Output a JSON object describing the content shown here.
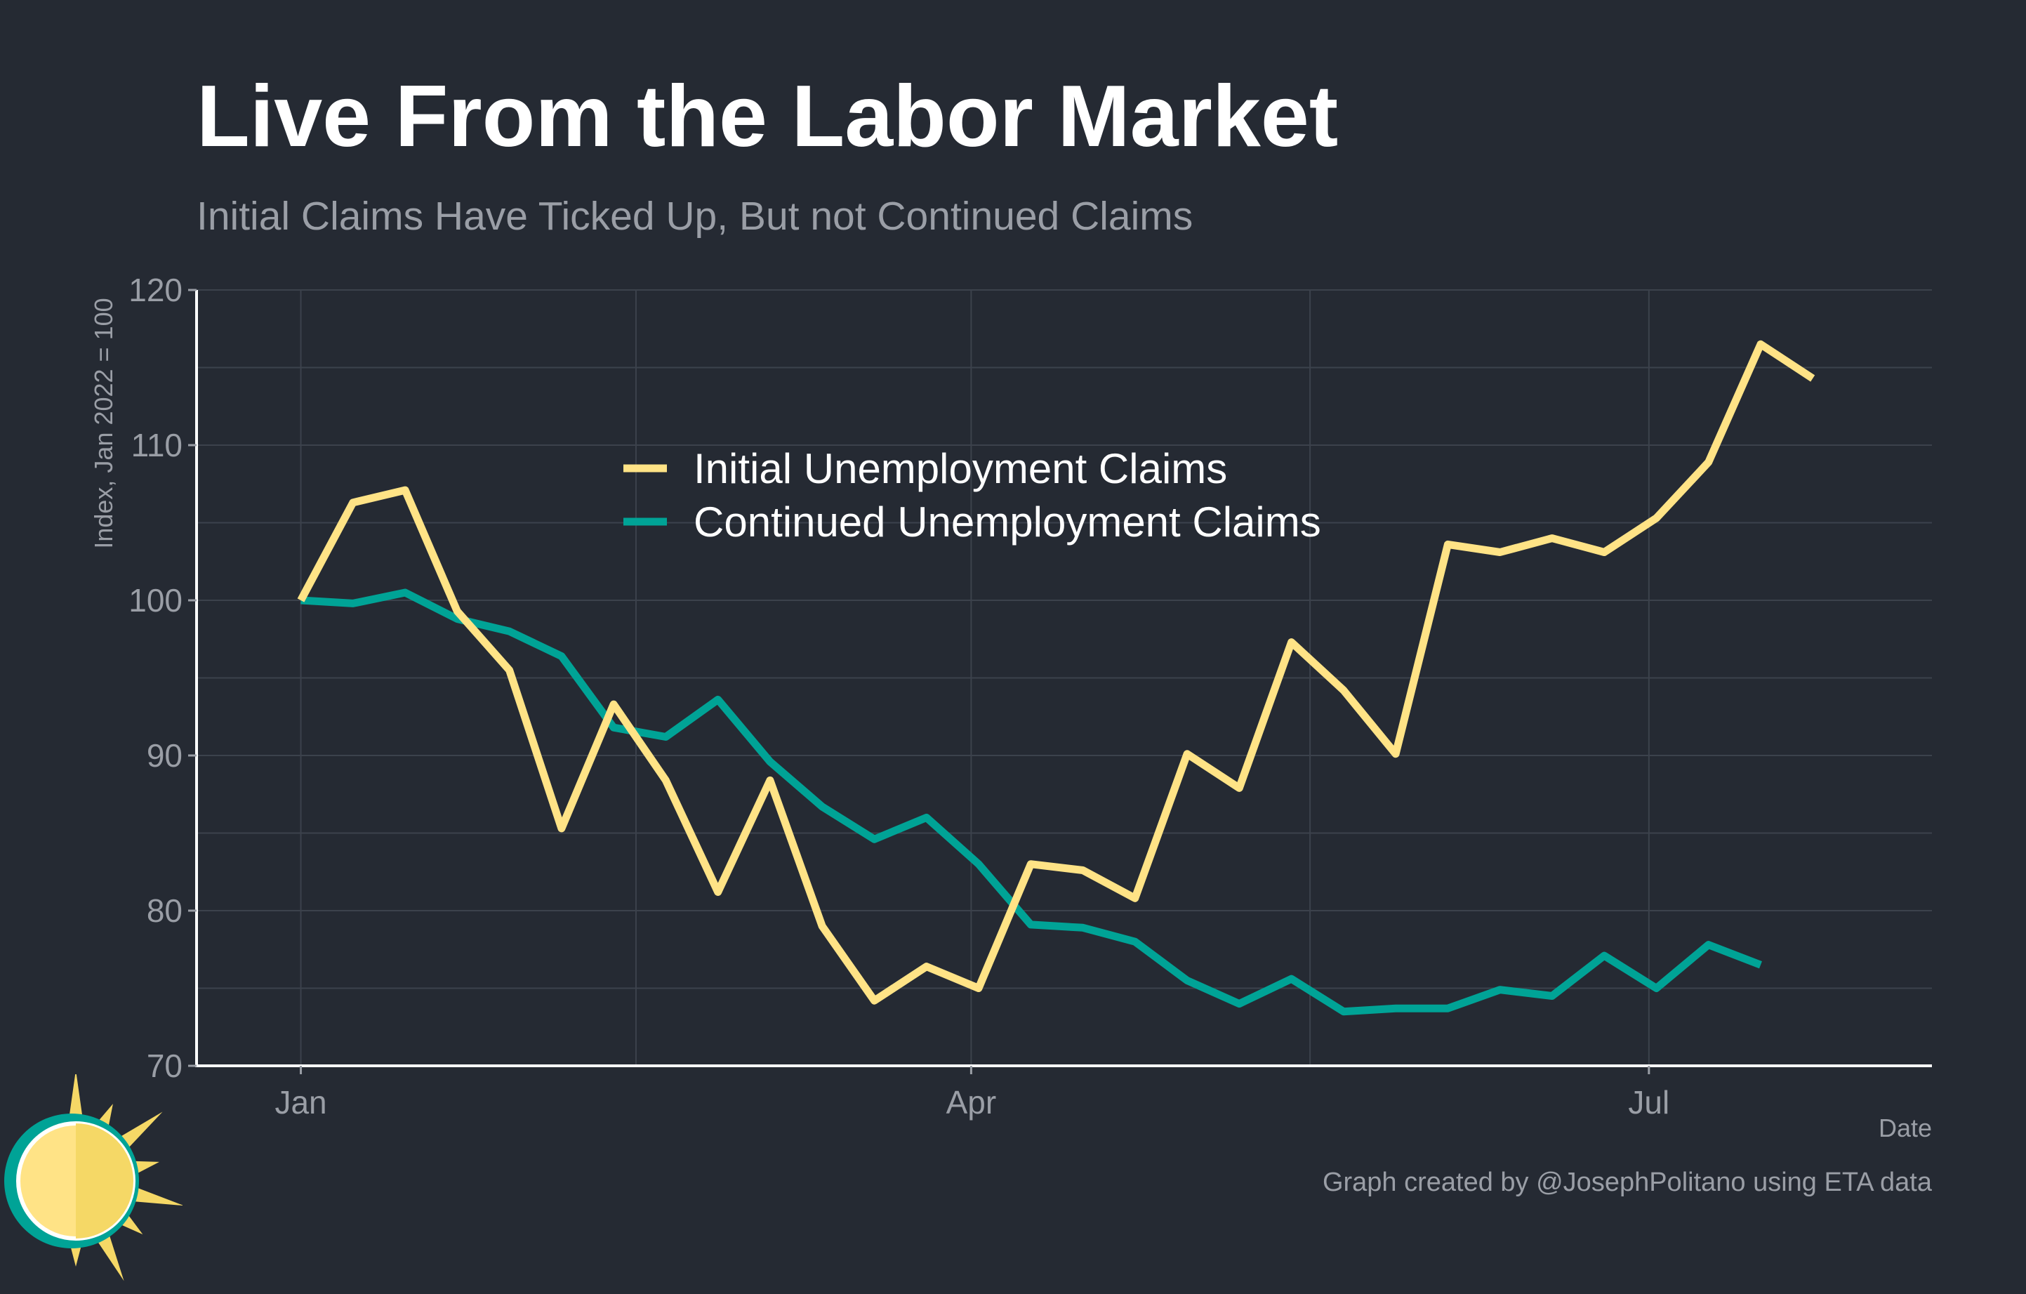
{
  "title": "Live From the Labor Market",
  "subtitle": "Initial Claims Have Ticked Up, But not Continued Claims",
  "credit": "Graph created by @JosephPolitano using ETA data",
  "colors": {
    "background": "#252a33",
    "grid": "#3c424c",
    "axis": "#ffffff",
    "initial": "#ffe386",
    "continued": "#00a396",
    "muted_text": "#9a9ea6"
  },
  "chart_data": {
    "type": "line",
    "xlabel": "Date",
    "ylabel": "Index, Jan 2022 = 100",
    "ylim": [
      70,
      120
    ],
    "yticks": [
      70,
      80,
      90,
      100,
      110,
      120
    ],
    "x_axis_start": "2021-12-18",
    "x_axis_end": "2022-08-08",
    "xticks": [
      {
        "label": "Jan",
        "date": "2022-01-01"
      },
      {
        "label": "Apr",
        "date": "2022-04-01"
      },
      {
        "label": "Jul",
        "date": "2022-07-01"
      }
    ],
    "grid": true,
    "legend_position": "top-center",
    "series": [
      {
        "name": "Initial Unemployment Claims",
        "color": "#ffe386",
        "points": [
          {
            "x": "2022-01-01",
            "y": 100.0
          },
          {
            "x": "2022-01-08",
            "y": 106.3
          },
          {
            "x": "2022-01-15",
            "y": 107.1
          },
          {
            "x": "2022-01-22",
            "y": 99.3
          },
          {
            "x": "2022-01-29",
            "y": 95.5
          },
          {
            "x": "2022-02-05",
            "y": 85.3
          },
          {
            "x": "2022-02-12",
            "y": 93.3
          },
          {
            "x": "2022-02-19",
            "y": 88.4
          },
          {
            "x": "2022-02-26",
            "y": 81.2
          },
          {
            "x": "2022-03-05",
            "y": 88.4
          },
          {
            "x": "2022-03-12",
            "y": 79.0
          },
          {
            "x": "2022-03-19",
            "y": 74.2
          },
          {
            "x": "2022-03-26",
            "y": 76.4
          },
          {
            "x": "2022-04-02",
            "y": 75.0
          },
          {
            "x": "2022-04-09",
            "y": 83.0
          },
          {
            "x": "2022-04-16",
            "y": 82.6
          },
          {
            "x": "2022-04-23",
            "y": 80.8
          },
          {
            "x": "2022-04-30",
            "y": 90.1
          },
          {
            "x": "2022-05-07",
            "y": 87.9
          },
          {
            "x": "2022-05-14",
            "y": 97.3
          },
          {
            "x": "2022-05-21",
            "y": 94.2
          },
          {
            "x": "2022-05-28",
            "y": 90.1
          },
          {
            "x": "2022-06-04",
            "y": 103.6
          },
          {
            "x": "2022-06-11",
            "y": 103.1
          },
          {
            "x": "2022-06-18",
            "y": 104.0
          },
          {
            "x": "2022-06-25",
            "y": 103.1
          },
          {
            "x": "2022-07-02",
            "y": 105.3
          },
          {
            "x": "2022-07-09",
            "y": 108.9
          },
          {
            "x": "2022-07-16",
            "y": 116.5
          },
          {
            "x": "2022-07-23",
            "y": 114.3
          }
        ]
      },
      {
        "name": "Continued Unemployment Claims",
        "color": "#00a396",
        "points": [
          {
            "x": "2022-01-01",
            "y": 100.0
          },
          {
            "x": "2022-01-08",
            "y": 99.8
          },
          {
            "x": "2022-01-15",
            "y": 100.5
          },
          {
            "x": "2022-01-22",
            "y": 98.8
          },
          {
            "x": "2022-01-29",
            "y": 98.0
          },
          {
            "x": "2022-02-05",
            "y": 96.4
          },
          {
            "x": "2022-02-12",
            "y": 91.8
          },
          {
            "x": "2022-02-19",
            "y": 91.2
          },
          {
            "x": "2022-02-26",
            "y": 93.6
          },
          {
            "x": "2022-03-05",
            "y": 89.6
          },
          {
            "x": "2022-03-12",
            "y": 86.7
          },
          {
            "x": "2022-03-19",
            "y": 84.6
          },
          {
            "x": "2022-03-26",
            "y": 86.0
          },
          {
            "x": "2022-04-02",
            "y": 83.0
          },
          {
            "x": "2022-04-09",
            "y": 79.1
          },
          {
            "x": "2022-04-16",
            "y": 78.9
          },
          {
            "x": "2022-04-23",
            "y": 78.0
          },
          {
            "x": "2022-04-30",
            "y": 75.5
          },
          {
            "x": "2022-05-07",
            "y": 74.0
          },
          {
            "x": "2022-05-14",
            "y": 75.6
          },
          {
            "x": "2022-05-21",
            "y": 73.5
          },
          {
            "x": "2022-05-28",
            "y": 73.7
          },
          {
            "x": "2022-06-04",
            "y": 73.7
          },
          {
            "x": "2022-06-11",
            "y": 74.9
          },
          {
            "x": "2022-06-18",
            "y": 74.5
          },
          {
            "x": "2022-06-25",
            "y": 77.1
          },
          {
            "x": "2022-07-02",
            "y": 75.0
          },
          {
            "x": "2022-07-09",
            "y": 77.8
          },
          {
            "x": "2022-07-16",
            "y": 76.5
          }
        ]
      }
    ]
  },
  "logo": {
    "icon": "sun-icon"
  }
}
